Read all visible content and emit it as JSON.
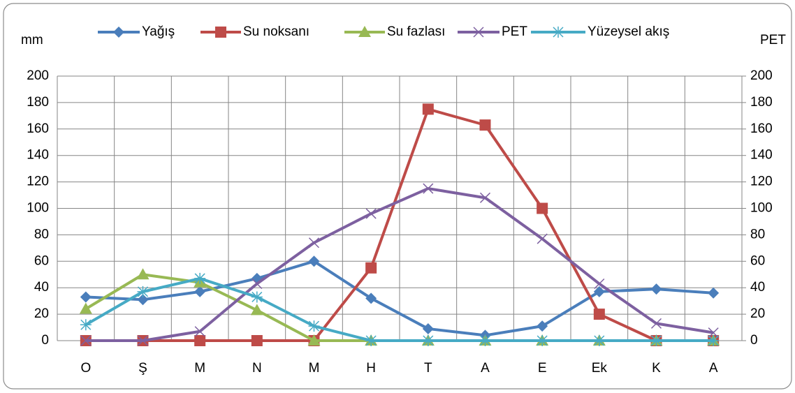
{
  "chart_data": {
    "type": "line",
    "y_label": "mm",
    "y2_label": "PET",
    "categories": [
      "O",
      "Ş",
      "M",
      "N",
      "M",
      "H",
      "T",
      "A",
      "E",
      "Ek",
      "K",
      "A"
    ],
    "series": [
      {
        "name": "Yağış",
        "color": "#4a7ebb",
        "marker": "diamond",
        "values": [
          33,
          31,
          37,
          47,
          60,
          32,
          9,
          4,
          11,
          37,
          39,
          36
        ]
      },
      {
        "name": "Su noksanı",
        "color": "#be4b48",
        "marker": "square",
        "values": [
          0,
          0,
          0,
          0,
          0,
          55,
          175,
          163,
          100,
          20,
          0,
          0
        ]
      },
      {
        "name": "Su fazlası",
        "color": "#98b954",
        "marker": "triangle",
        "values": [
          24,
          50,
          44,
          23,
          0,
          0,
          0,
          0,
          0,
          0,
          0,
          0
        ]
      },
      {
        "name": "PET",
        "color": "#7d60a0",
        "marker": "x",
        "axis": "y2",
        "values": [
          0,
          0,
          7,
          43,
          74,
          96,
          115,
          108,
          77,
          43,
          13,
          6
        ]
      },
      {
        "name": "Yüzeysel akış",
        "color": "#46aac5",
        "marker": "star",
        "values": [
          12,
          37,
          47,
          33,
          11,
          0,
          0,
          0,
          0,
          0,
          0,
          0
        ]
      }
    ],
    "ylim": [
      0,
      200
    ],
    "yticks": [
      0,
      20,
      40,
      60,
      80,
      100,
      120,
      140,
      160,
      180,
      200
    ],
    "y2lim": [
      0,
      200
    ],
    "y2ticks": [
      0,
      20,
      40,
      60,
      80,
      100,
      120,
      140,
      160,
      180,
      200
    ],
    "grid": true,
    "legend": "top"
  }
}
